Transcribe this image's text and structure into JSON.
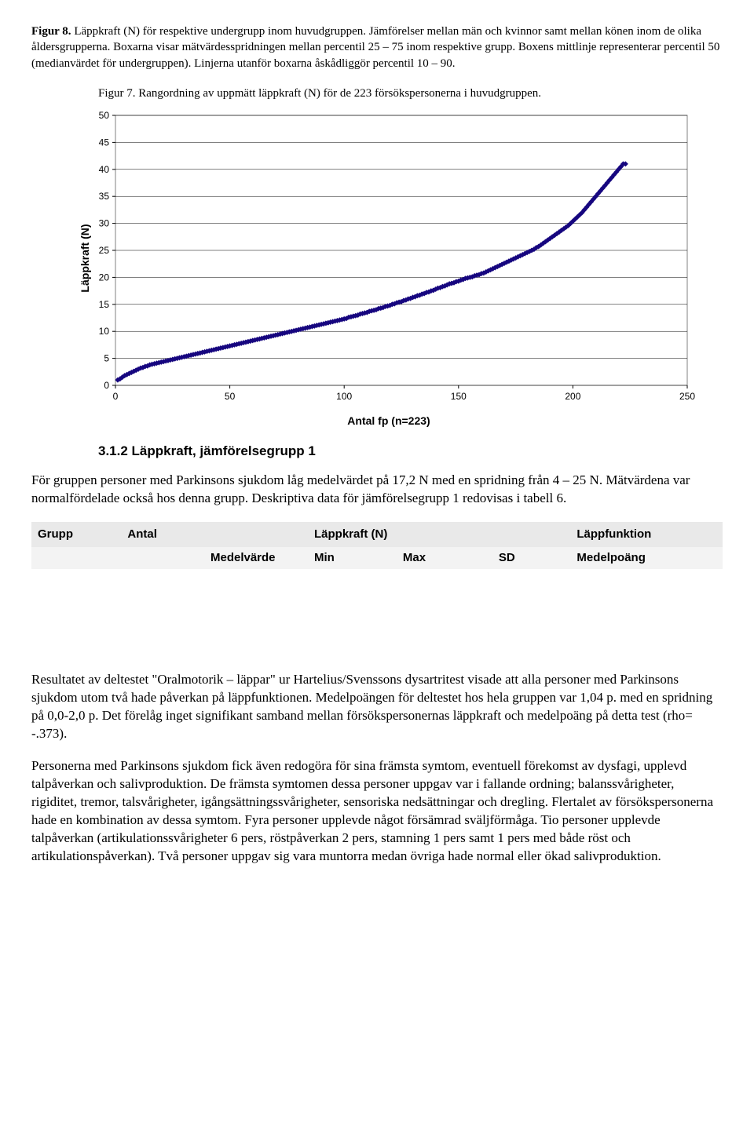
{
  "fig8": {
    "lead": "Figur 8.",
    "text": " Läppkraft (N) för respektive undergrupp inom huvudgruppen. Jämförelser mellan män och kvinnor samt mellan könen inom de olika åldersgrupperna. Boxarna visar mätvärdesspridningen mellan percentil 25 – 75 inom respektive grupp. Boxens mittlinje representerar percentil 50 (medianvärdet för undergruppen). Linjerna utanför boxarna åskådliggör percentil 10 – 90."
  },
  "fig7": {
    "lead": "Figur 7.",
    "text": " Rangordning av uppmätt läppkraft (N) för de 223 försökspersonerna i huvudgruppen."
  },
  "chart": {
    "type": "scatter",
    "y_label": "Läppkraft (N)",
    "x_label": "Antal fp (n=223)",
    "xlim": [
      0,
      250
    ],
    "ylim": [
      0,
      50
    ],
    "x_ticks": [
      0,
      50,
      100,
      150,
      200,
      250
    ],
    "y_ticks": [
      0,
      5,
      10,
      15,
      20,
      25,
      30,
      35,
      40,
      45,
      50
    ],
    "marker_color": "#16067f",
    "marker_size": 7,
    "gridline_color": "#000000",
    "background_color": "#ffffff",
    "axis_font": "Arial",
    "tick_fontsize": 12,
    "label_fontsize": 14,
    "values": [
      1.0,
      1.2,
      1.5,
      1.8,
      2.0,
      2.2,
      2.4,
      2.6,
      2.8,
      3.0,
      3.2,
      3.3,
      3.5,
      3.6,
      3.8,
      3.9,
      4.0,
      4.1,
      4.2,
      4.3,
      4.4,
      4.5,
      4.6,
      4.7,
      4.8,
      4.9,
      5.0,
      5.1,
      5.2,
      5.3,
      5.4,
      5.5,
      5.6,
      5.7,
      5.8,
      5.9,
      6.0,
      6.1,
      6.2,
      6.3,
      6.4,
      6.5,
      6.6,
      6.7,
      6.8,
      6.9,
      7.0,
      7.1,
      7.2,
      7.3,
      7.4,
      7.5,
      7.6,
      7.7,
      7.8,
      7.9,
      8.0,
      8.1,
      8.2,
      8.3,
      8.4,
      8.5,
      8.6,
      8.7,
      8.8,
      8.9,
      9.0,
      9.1,
      9.2,
      9.3,
      9.4,
      9.5,
      9.6,
      9.7,
      9.8,
      9.9,
      10.0,
      10.1,
      10.2,
      10.3,
      10.4,
      10.5,
      10.6,
      10.7,
      10.8,
      10.9,
      11.0,
      11.1,
      11.2,
      11.3,
      11.4,
      11.5,
      11.6,
      11.7,
      11.8,
      11.9,
      12.0,
      12.1,
      12.2,
      12.3,
      12.4,
      12.6,
      12.7,
      12.8,
      12.9,
      13.0,
      13.2,
      13.3,
      13.4,
      13.5,
      13.7,
      13.8,
      13.9,
      14.0,
      14.2,
      14.3,
      14.4,
      14.6,
      14.7,
      14.8,
      15.0,
      15.1,
      15.3,
      15.4,
      15.5,
      15.7,
      15.8,
      16.0,
      16.1,
      16.3,
      16.4,
      16.6,
      16.7,
      16.9,
      17.0,
      17.2,
      17.3,
      17.5,
      17.6,
      17.8,
      18.0,
      18.1,
      18.3,
      18.4,
      18.6,
      18.8,
      18.9,
      19.0,
      19.2,
      19.3,
      19.5,
      19.6,
      19.8,
      19.9,
      20.0,
      20.1,
      20.3,
      20.4,
      20.5,
      20.7,
      20.8,
      21.0,
      21.2,
      21.4,
      21.6,
      21.8,
      22.0,
      22.2,
      22.4,
      22.6,
      22.8,
      23.0,
      23.2,
      23.4,
      23.6,
      23.8,
      24.0,
      24.2,
      24.4,
      24.6,
      24.8,
      25.0,
      25.2,
      25.5,
      25.7,
      26.0,
      26.3,
      26.6,
      26.9,
      27.2,
      27.5,
      27.8,
      28.1,
      28.4,
      28.7,
      29.0,
      29.3,
      29.6,
      30.0,
      30.4,
      30.8,
      31.2,
      31.6,
      32.0,
      32.5,
      33.0,
      33.5,
      34.0,
      34.5,
      35.0,
      35.5,
      36.0,
      36.5,
      37.0,
      37.5,
      38.0,
      38.5,
      39.0,
      39.5,
      40.0,
      40.5,
      41.0,
      41.0
    ]
  },
  "section_3_1_2": {
    "heading": "3.1.2 Läppkraft, jämförelsegrupp 1",
    "p1": "För gruppen personer med Parkinsons sjukdom låg medelvärdet på 17,2 N med en spridning från 4 – 25 N. Mätvärdena var normalfördelade också hos denna grupp. Deskriptiva data för jämförelsegrupp 1 redovisas i tabell 6."
  },
  "table6": {
    "hdr1": [
      "Grupp",
      "Antal",
      "Läppkraft (N)",
      "Läppfunktion"
    ],
    "hdr2": [
      "Medelvärde",
      "Min",
      "Max",
      "SD",
      "Medelpoäng"
    ],
    "header_bg1": "#e9e9e9",
    "header_bg2": "#f3f3f3"
  },
  "results": {
    "p1": "Resultatet av deltestet \"Oralmotorik – läppar\" ur Hartelius/Svenssons dysartritest visade att alla personer med Parkinsons sjukdom utom två hade påverkan på läppfunktionen. Medelpoängen för deltestet hos hela gruppen var 1,04 p. med en spridning på 0,0-2,0 p. Det förelåg inget signifikant samband mellan försökspersonernas läppkraft och medelpoäng på detta test (rho= -.373).",
    "p2": "Personerna med Parkinsons sjukdom fick även redogöra för sina främsta symtom, eventuell förekomst av dysfagi, upplevd talpåverkan och salivproduktion. De främsta symtomen dessa personer uppgav var i fallande ordning; balanssvårigheter, rigiditet, tremor, talsvårigheter, igångsättningssvårigheter, sensoriska nedsättningar och dregling. Flertalet av försökspersonerna hade en kombination av dessa symtom. Fyra personer upplevde något försämrad sväljförmåga. Tio personer upplevde talpåverkan (artikulationssvårigheter 6 pers, röstpåverkan 2 pers, stamning 1 pers samt 1 pers med både röst och artikulationspåverkan). Två personer uppgav sig vara muntorra medan övriga hade normal eller ökad salivproduktion."
  }
}
